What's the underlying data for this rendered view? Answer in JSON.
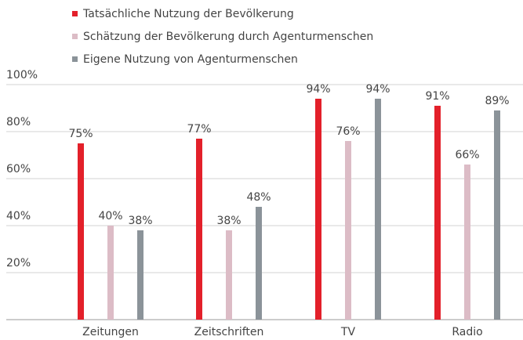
{
  "chart_data": {
    "type": "bar",
    "categories": [
      "Zeitungen",
      "Zeitschriften",
      "TV",
      "Radio"
    ],
    "series": [
      {
        "name": "Tatsächliche Nutzung der Bevölkerung",
        "color": "#e3202a",
        "values": [
          75,
          77,
          94,
          91
        ],
        "value_labels": [
          "75%",
          "77%",
          "94%",
          "91%"
        ]
      },
      {
        "name": "Schätzung der Bevölkerung durch Agenturmenschen",
        "color": "#dcbcc6",
        "values": [
          40,
          38,
          76,
          66
        ],
        "value_labels": [
          "40%",
          "38%",
          "76%",
          "66%"
        ]
      },
      {
        "name": "Eigene Nutzung von Agenturmenschen",
        "color": "#8b9399",
        "values": [
          38,
          48,
          94,
          89
        ],
        "value_labels": [
          "38%",
          "48%",
          "94%",
          "89%"
        ]
      }
    ],
    "ylim": [
      0,
      100
    ],
    "yticks": [
      {
        "value": 20,
        "label": "20%"
      },
      {
        "value": 40,
        "label": "40%"
      },
      {
        "value": 60,
        "label": "60%"
      },
      {
        "value": 80,
        "label": "80%"
      },
      {
        "value": 100,
        "label": "100%"
      }
    ],
    "grid": true
  }
}
